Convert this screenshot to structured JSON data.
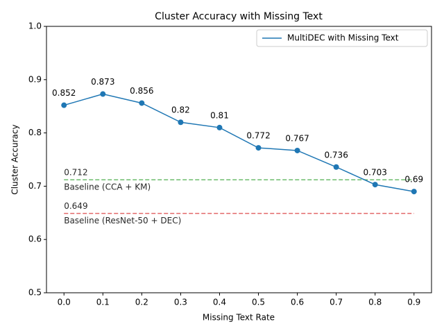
{
  "chart_data": {
    "type": "line",
    "title": "Cluster Accuracy with Missing Text",
    "xlabel": "Missing Text Rate",
    "ylabel": "Cluster Accuracy",
    "x": [
      0,
      0.1,
      0.2,
      0.3,
      0.4,
      0.5,
      0.6,
      0.7,
      0.8,
      0.9
    ],
    "series": [
      {
        "name": "MultiDEC with Missing Text",
        "color": "#1f77b4",
        "values": [
          0.852,
          0.873,
          0.856,
          0.82,
          0.81,
          0.772,
          0.767,
          0.736,
          0.703,
          0.69
        ]
      }
    ],
    "baselines": [
      {
        "name": "Baseline (CCA + KM)",
        "value": 0.712,
        "color": "#2ca02c"
      },
      {
        "name": "Baseline (ResNet-50 + DEC)",
        "value": 0.649,
        "color": "#d62728"
      }
    ],
    "xlim": [
      -0.045,
      0.945
    ],
    "xticks": [
      {
        "value": 0,
        "label": "0.0"
      },
      0.1,
      0.2,
      0.3,
      0.4,
      0.5,
      0.6,
      0.7,
      0.8,
      0.9
    ],
    "ylim": [
      0.5,
      1.0
    ],
    "yticks": [
      0.5,
      0.6,
      0.7,
      0.8,
      0.9,
      {
        "value": 1,
        "label": "1.0"
      }
    ],
    "legend": "upper right"
  }
}
